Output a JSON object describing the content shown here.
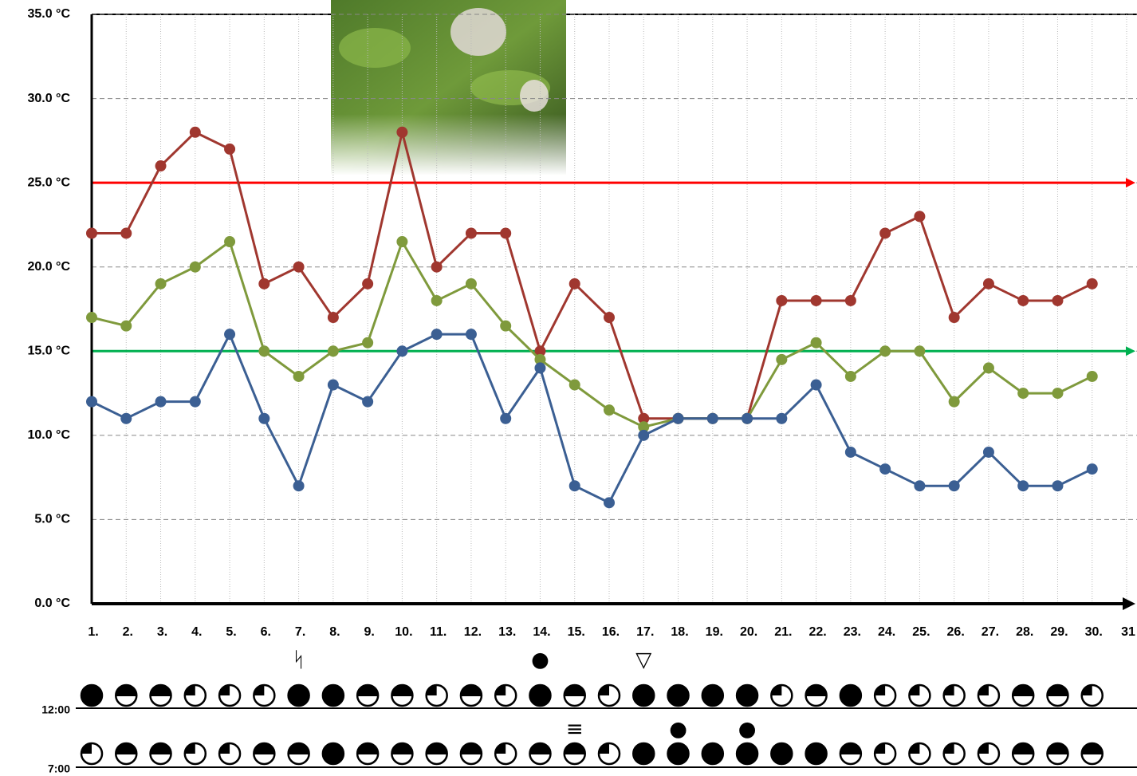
{
  "chart_data": {
    "type": "line",
    "categories": [
      "1.",
      "2.",
      "3.",
      "4.",
      "5.",
      "6.",
      "7.",
      "8.",
      "9.",
      "10.",
      "11.",
      "12.",
      "13.",
      "14.",
      "15.",
      "16.",
      "17.",
      "18.",
      "19.",
      "20.",
      "21.",
      "22.",
      "23.",
      "24.",
      "25.",
      "26.",
      "27.",
      "28.",
      "29.",
      "30.",
      "31"
    ],
    "series": [
      {
        "color": "#a0372f",
        "values": [
          22,
          22,
          26,
          28,
          27,
          19,
          20,
          17,
          19,
          28,
          20,
          22,
          22,
          15,
          19,
          17,
          11,
          11,
          11,
          11,
          18,
          18,
          18,
          22,
          23,
          17,
          19,
          18,
          18,
          19,
          null
        ]
      },
      {
        "color": "#7f9a3c",
        "values": [
          17,
          16.5,
          19,
          20,
          21.5,
          15,
          13.5,
          15,
          15.5,
          21.5,
          18,
          19,
          16.5,
          14.5,
          13,
          11.5,
          10.5,
          11,
          11,
          11,
          14.5,
          15.5,
          13.5,
          15,
          15,
          12,
          14,
          12.5,
          12.5,
          13.5,
          null
        ]
      },
      {
        "color": "#3b5f93",
        "values": [
          12,
          11,
          12,
          12,
          16,
          11,
          7,
          13,
          12,
          15,
          16,
          16,
          11,
          14,
          7,
          6,
          10,
          11,
          11,
          11,
          11,
          13,
          9,
          8,
          7,
          7,
          9,
          7,
          7,
          8,
          null
        ]
      }
    ],
    "reference_lines": [
      {
        "value": 25,
        "color": "#ff0000"
      },
      {
        "value": 15,
        "color": "#00b050"
      }
    ],
    "ylim": [
      0,
      35
    ],
    "yticks": [
      {
        "value": 0,
        "label": "0.0 °C"
      },
      {
        "value": 5,
        "label": "5.0 °C"
      },
      {
        "value": 10,
        "label": "10.0 °C"
      },
      {
        "value": 15,
        "label": "15.0 °C"
      },
      {
        "value": 20,
        "label": "20.0 °C"
      },
      {
        "value": 25,
        "label": "25.0 °C"
      },
      {
        "value": 30,
        "label": "30.0 °C"
      },
      {
        "value": 35,
        "label": "35.0 °C"
      }
    ],
    "grid": true,
    "weather": [
      {
        "label": "12:00",
        "cover": [
          1,
          0.5,
          0.5,
          0.25,
          0.25,
          0.25,
          1,
          1,
          0.5,
          0.5,
          0.25,
          0.5,
          0.25,
          1,
          0.5,
          0.25,
          1,
          1,
          1,
          1,
          0.25,
          0.5,
          1,
          0.25,
          0.25,
          0.25,
          0.25,
          0.5,
          0.5,
          0.25
        ],
        "symbols": [
          null,
          null,
          null,
          null,
          null,
          null,
          "ᛋ",
          null,
          null,
          null,
          null,
          null,
          null,
          "●",
          null,
          null,
          "▽",
          null,
          null,
          null,
          null,
          null,
          null,
          null,
          null,
          null,
          null,
          null,
          null,
          null
        ]
      },
      {
        "label": "7:00",
        "cover": [
          0.25,
          0.5,
          0.5,
          0.25,
          0.25,
          0.5,
          0.5,
          1,
          0.5,
          0.5,
          0.5,
          0.5,
          0.25,
          0.5,
          0.5,
          0.25,
          1,
          1,
          1,
          1,
          1,
          1,
          0.5,
          0.25,
          0.25,
          0.25,
          0.25,
          0.5,
          0.5,
          0.5
        ],
        "symbols": [
          null,
          null,
          null,
          null,
          null,
          null,
          null,
          null,
          null,
          null,
          null,
          null,
          null,
          null,
          "≡",
          null,
          null,
          "●",
          null,
          "●",
          null,
          null,
          null,
          null,
          null,
          null,
          null,
          null,
          null,
          null
        ]
      }
    ]
  }
}
